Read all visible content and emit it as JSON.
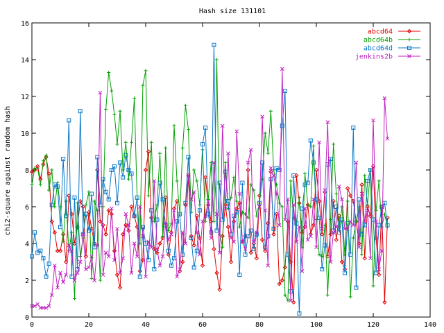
{
  "chart_data": {
    "type": "line",
    "title": "Hash size 131101",
    "xlabel": "",
    "ylabel": "chi2-square against random hash",
    "xlim": [
      0,
      140
    ],
    "ylim": [
      0,
      16
    ],
    "x_ticks": [
      "0",
      "20",
      "40",
      "60",
      "80",
      "100",
      "120",
      "140"
    ],
    "y_ticks": [
      "0",
      "2",
      "4",
      "6",
      "8",
      "10",
      "12",
      "14",
      "16"
    ],
    "x_tick_values": [
      0,
      20,
      40,
      60,
      80,
      100,
      120,
      140
    ],
    "y_tick_values": [
      0,
      2,
      4,
      6,
      8,
      10,
      12,
      14,
      16
    ],
    "grid": false,
    "legend_position": "top-right",
    "series": [
      {
        "name": "abcd64",
        "color": "#e00000",
        "marker": "diamond",
        "x": [
          0,
          1,
          2,
          3,
          4,
          5,
          6,
          7,
          8,
          9,
          10,
          11,
          12,
          13,
          14,
          15,
          16,
          17,
          18,
          19,
          20,
          21,
          22,
          23,
          24,
          25,
          26,
          27,
          28,
          29,
          30,
          31,
          32,
          33,
          34,
          35,
          36,
          37,
          38,
          39,
          40,
          41,
          42,
          43,
          44,
          45,
          46,
          47,
          48,
          49,
          50,
          51,
          52,
          53,
          54,
          55,
          56,
          57,
          58,
          59,
          60,
          61,
          62,
          63,
          64,
          65,
          66,
          67,
          68,
          69,
          70,
          71,
          72,
          73,
          74,
          75,
          76,
          77,
          78,
          79,
          80,
          81,
          82,
          83,
          84,
          85,
          86,
          87,
          88,
          89,
          90,
          91,
          92,
          93,
          94,
          95,
          96,
          97,
          98,
          99,
          100,
          101,
          102,
          103,
          104,
          105,
          106,
          107,
          108,
          109,
          110,
          111,
          112,
          113,
          114,
          115,
          116,
          117,
          118,
          119,
          120,
          121,
          122,
          123,
          124,
          125
        ],
        "y": [
          7.9,
          8.0,
          8.2,
          7.5,
          8.3,
          8.7,
          7.8,
          5.2,
          4.6,
          3.6,
          3.6,
          4.5,
          3.0,
          6.6,
          5.6,
          4.0,
          4.9,
          6.3,
          6.0,
          3.3,
          5.7,
          4.8,
          4.0,
          8.0,
          5.2,
          5.0,
          4.5,
          5.8,
          5.6,
          3.6,
          2.3,
          1.6,
          4.5,
          5.0,
          4.7,
          6.0,
          5.5,
          4.9,
          2.5,
          3.1,
          8.0,
          9.0,
          5.4,
          3.7,
          3.5,
          4.0,
          4.3,
          6.5,
          3.4,
          4.6,
          5.9,
          6.3,
          2.5,
          3.0,
          6.1,
          7.7,
          4.4,
          3.9,
          5.5,
          4.3,
          2.8,
          7.6,
          6.1,
          5.2,
          3.7,
          2.4,
          1.5,
          4.4,
          6.1,
          4.9,
          3.0,
          5.2,
          5.9,
          6.2,
          4.1,
          4.4,
          8.0,
          3.5,
          4.0,
          3.2,
          6.6,
          4.2,
          3.6,
          5.1,
          7.9,
          4.5,
          5.6,
          1.8,
          2.0,
          2.7,
          5.2,
          3.0,
          0.8,
          7.7,
          6.2,
          4.6,
          4.9,
          6.1,
          4.5,
          5.0,
          8.0,
          6.3,
          4.5,
          6.8,
          3.3,
          4.5,
          6.3,
          4.2,
          5.5,
          3.0,
          2.6,
          7.0,
          6.6,
          6.3,
          5.2,
          4.0,
          7.2,
          3.2,
          6.0,
          5.5,
          8.2,
          4.3,
          2.3,
          6.0,
          0.8,
          5.4
        ]
      },
      {
        "name": "abcd64b",
        "color": "#00a000",
        "marker": "plus",
        "x": [
          0,
          1,
          2,
          3,
          4,
          5,
          6,
          7,
          8,
          9,
          10,
          11,
          12,
          13,
          14,
          15,
          16,
          17,
          18,
          19,
          20,
          21,
          22,
          23,
          24,
          25,
          26,
          27,
          28,
          29,
          30,
          31,
          32,
          33,
          34,
          35,
          36,
          37,
          38,
          39,
          40,
          41,
          42,
          43,
          44,
          45,
          46,
          47,
          48,
          49,
          50,
          51,
          52,
          53,
          54,
          55,
          56,
          57,
          58,
          59,
          60,
          61,
          62,
          63,
          64,
          65,
          66,
          67,
          68,
          69,
          70,
          71,
          72,
          73,
          74,
          75,
          76,
          77,
          78,
          79,
          80,
          81,
          82,
          83,
          84,
          85,
          86,
          87,
          88,
          89,
          90,
          91,
          92,
          93,
          94,
          95,
          96,
          97,
          98,
          99,
          100,
          101,
          102,
          103,
          104,
          105,
          106,
          107,
          108,
          109,
          110,
          111,
          112,
          113,
          114,
          115,
          116,
          117,
          118,
          119,
          120,
          121,
          122,
          123,
          124,
          125
        ],
        "y": [
          7.2,
          8.1,
          8.1,
          7.2,
          8.5,
          8.8,
          6.9,
          8.0,
          6.0,
          7.3,
          6.0,
          4.1,
          6.3,
          3.6,
          4.6,
          1.0,
          6.2,
          3.3,
          4.3,
          6.1,
          6.8,
          2.1,
          6.3,
          5.8,
          2.0,
          6.0,
          11.3,
          13.3,
          12.3,
          11.0,
          9.4,
          11.2,
          8.0,
          9.5,
          7.5,
          9.5,
          11.9,
          6.4,
          4.0,
          12.6,
          13.4,
          6.6,
          9.5,
          5.2,
          6.1,
          8.9,
          4.4,
          9.2,
          4.7,
          5.1,
          10.4,
          7.4,
          5.6,
          9.2,
          11.5,
          10.2,
          5.7,
          8.0,
          7.4,
          6.1,
          9.1,
          5.2,
          6.4,
          8.4,
          5.2,
          14.0,
          4.5,
          3.8,
          8.4,
          5.9,
          6.5,
          7.6,
          6.3,
          4.9,
          5.7,
          5.6,
          5.4,
          7.2,
          6.9,
          5.5,
          6.2,
          7.5,
          10.0,
          8.9,
          11.2,
          8.0,
          7.2,
          6.2,
          6.0,
          1.2,
          0.9,
          7.4,
          5.4,
          5.0,
          6.5,
          3.8,
          7.8,
          6.1,
          6.0,
          9.3,
          5.3,
          3.4,
          3.3,
          5.0,
          1.2,
          5.3,
          9.4,
          6.7,
          4.7,
          6.0,
          3.4,
          6.3,
          1.1,
          4.3,
          5.2,
          6.0,
          3.4,
          7.7,
          6.1,
          8.0,
          1.7,
          5.8,
          7.4,
          4.9,
          5.6,
          4.9
        ]
      },
      {
        "name": "abcd64d",
        "color": "#0a78c8",
        "marker": "square",
        "x": [
          0,
          1,
          2,
          3,
          4,
          5,
          6,
          7,
          8,
          9,
          10,
          11,
          12,
          13,
          14,
          15,
          16,
          17,
          18,
          19,
          20,
          21,
          22,
          23,
          24,
          25,
          26,
          27,
          28,
          29,
          30,
          31,
          32,
          33,
          34,
          35,
          36,
          37,
          38,
          39,
          40,
          41,
          42,
          43,
          44,
          45,
          46,
          47,
          48,
          49,
          50,
          51,
          52,
          53,
          54,
          55,
          56,
          57,
          58,
          59,
          60,
          61,
          62,
          63,
          64,
          65,
          66,
          67,
          68,
          69,
          70,
          71,
          72,
          73,
          74,
          75,
          76,
          77,
          78,
          79,
          80,
          81,
          82,
          83,
          84,
          85,
          86,
          87,
          88,
          89,
          90,
          91,
          92,
          93,
          94,
          95,
          96,
          97,
          98,
          99,
          100,
          101,
          102,
          103,
          104,
          105,
          106,
          107,
          108,
          109,
          110,
          111,
          112,
          113,
          114,
          115,
          116,
          117,
          118,
          119,
          120,
          121,
          122,
          123,
          124,
          125
        ],
        "y": [
          3.3,
          4.6,
          3.5,
          3.6,
          3.2,
          2.2,
          2.9,
          6.1,
          7.2,
          7.1,
          4.9,
          8.6,
          5.5,
          10.7,
          2.2,
          6.5,
          2.6,
          11.2,
          4.5,
          5.6,
          4.7,
          6.7,
          3.8,
          8.7,
          6.1,
          7.5,
          6.8,
          6.4,
          8.0,
          8.2,
          6.2,
          8.4,
          7.6,
          8.8,
          8.0,
          7.8,
          5.5,
          6.5,
          2.2,
          4.9,
          4.0,
          3.1,
          5.8,
          2.6,
          5.3,
          7.3,
          6.4,
          5.0,
          3.6,
          2.8,
          3.2,
          5.2,
          5.6,
          3.4,
          6.2,
          8.7,
          4.3,
          2.7,
          3.6,
          5.8,
          9.4,
          10.3,
          5.6,
          4.6,
          14.8,
          4.7,
          7.3,
          5.3,
          7.9,
          6.3,
          4.5,
          5.5,
          5.7,
          2.3,
          7.3,
          3.4,
          4.4,
          4.7,
          3.7,
          4.5,
          6.2,
          8.4,
          3.8,
          4.4,
          7.5,
          4.8,
          8.1,
          8.0,
          10.4,
          12.3,
          3.4,
          1.4,
          7.7,
          5.1,
          0.2,
          5.9,
          7.2,
          7.3,
          9.6,
          8.4,
          6.4,
          5.4,
          2.6,
          3.9,
          8.3,
          8.6,
          4.7,
          6.0,
          4.6,
          5.3,
          2.4,
          5.1,
          3.4,
          10.3,
          1.6,
          6.4,
          4.5,
          5.0,
          7.4,
          8.0,
          5.3,
          2.4,
          5.0,
          6.0,
          6.2,
          5.0
        ]
      },
      {
        "name": "jenkins2b",
        "color": "#c020c0",
        "marker": "x",
        "x": [
          0,
          1,
          2,
          3,
          4,
          5,
          6,
          7,
          8,
          9,
          10,
          11,
          12,
          13,
          14,
          15,
          16,
          17,
          18,
          19,
          20,
          21,
          22,
          23,
          24,
          25,
          26,
          27,
          28,
          29,
          30,
          31,
          32,
          33,
          34,
          35,
          36,
          37,
          38,
          39,
          40,
          41,
          42,
          43,
          44,
          45,
          46,
          47,
          48,
          49,
          50,
          51,
          52,
          53,
          54,
          55,
          56,
          57,
          58,
          59,
          60,
          61,
          62,
          63,
          64,
          65,
          66,
          67,
          68,
          69,
          70,
          71,
          72,
          73,
          74,
          75,
          76,
          77,
          78,
          79,
          80,
          81,
          82,
          83,
          84,
          85,
          86,
          87,
          88,
          89,
          90,
          91,
          92,
          93,
          94,
          95,
          96,
          97,
          98,
          99,
          100,
          101,
          102,
          103,
          104,
          105,
          106,
          107,
          108,
          109,
          110,
          111,
          112,
          113,
          114,
          115,
          116,
          117,
          118,
          119,
          120,
          121,
          122,
          123,
          124,
          125
        ],
        "y": [
          0.6,
          0.6,
          0.7,
          0.5,
          0.5,
          0.5,
          0.6,
          1.2,
          2.8,
          1.6,
          2.4,
          1.9,
          2.3,
          3.9,
          3.6,
          2.0,
          2.4,
          3.0,
          4.5,
          2.6,
          2.7,
          3.3,
          2.0,
          3.9,
          12.2,
          2.3,
          3.5,
          3.3,
          5.9,
          3.1,
          4.8,
          2.4,
          3.2,
          5.6,
          5.0,
          2.4,
          4.0,
          3.3,
          6.0,
          4.4,
          2.2,
          4.1,
          3.8,
          7.4,
          3.7,
          2.8,
          3.3,
          5.1,
          4.2,
          4.5,
          5.8,
          2.2,
          2.6,
          4.6,
          4.0,
          7.7,
          6.4,
          6.8,
          4.6,
          3.4,
          5.2,
          5.5,
          6.3,
          4.3,
          8.4,
          5.6,
          3.5,
          10.4,
          5.9,
          8.9,
          4.3,
          4.1,
          10.1,
          6.7,
          4.1,
          3.7,
          8.4,
          9.1,
          4.1,
          4.6,
          6.0,
          10.9,
          5.8,
          2.8,
          8.1,
          7.7,
          6.7,
          5.0,
          13.5,
          5.3,
          6.4,
          0.9,
          6.1,
          4.1,
          4.9,
          2.5,
          5.9,
          4.2,
          4.4,
          6.4,
          3.8,
          9.5,
          4.8,
          6.9,
          10.6,
          3.0,
          4.6,
          4.9,
          7.1,
          6.4,
          4.8,
          4.8,
          5.2,
          5.0,
          8.4,
          3.8,
          6.7,
          5.2,
          5.8,
          3.2,
          10.7,
          5.2,
          2.6,
          3.6,
          11.9,
          9.7
        ]
      }
    ]
  }
}
